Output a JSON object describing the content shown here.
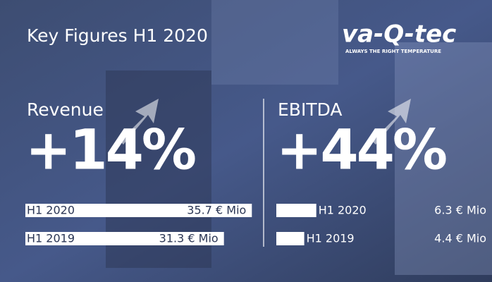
{
  "header": {
    "title": "Key Figures H1 2020",
    "logo": "va-Q-tec",
    "tagline": "ALWAYS THE RIGHT TEMPERATURE"
  },
  "panels": [
    {
      "title": "Revenue",
      "growth": {
        "value": 14,
        "label": "+14%"
      },
      "categories": [
        "H1 2020",
        "H1 2019"
      ],
      "values": [
        35.7,
        31.3
      ],
      "value_labels": [
        "35.7 € Mio",
        "31.3 € Mio"
      ]
    },
    {
      "title": "EBITDA",
      "growth": {
        "value": 44,
        "label": "+44%"
      },
      "categories": [
        "H1 2020",
        "H1 2019"
      ],
      "values": [
        6.3,
        4.4
      ],
      "value_labels": [
        "6.3 € Mio",
        "4.4 € Mio"
      ]
    }
  ]
}
